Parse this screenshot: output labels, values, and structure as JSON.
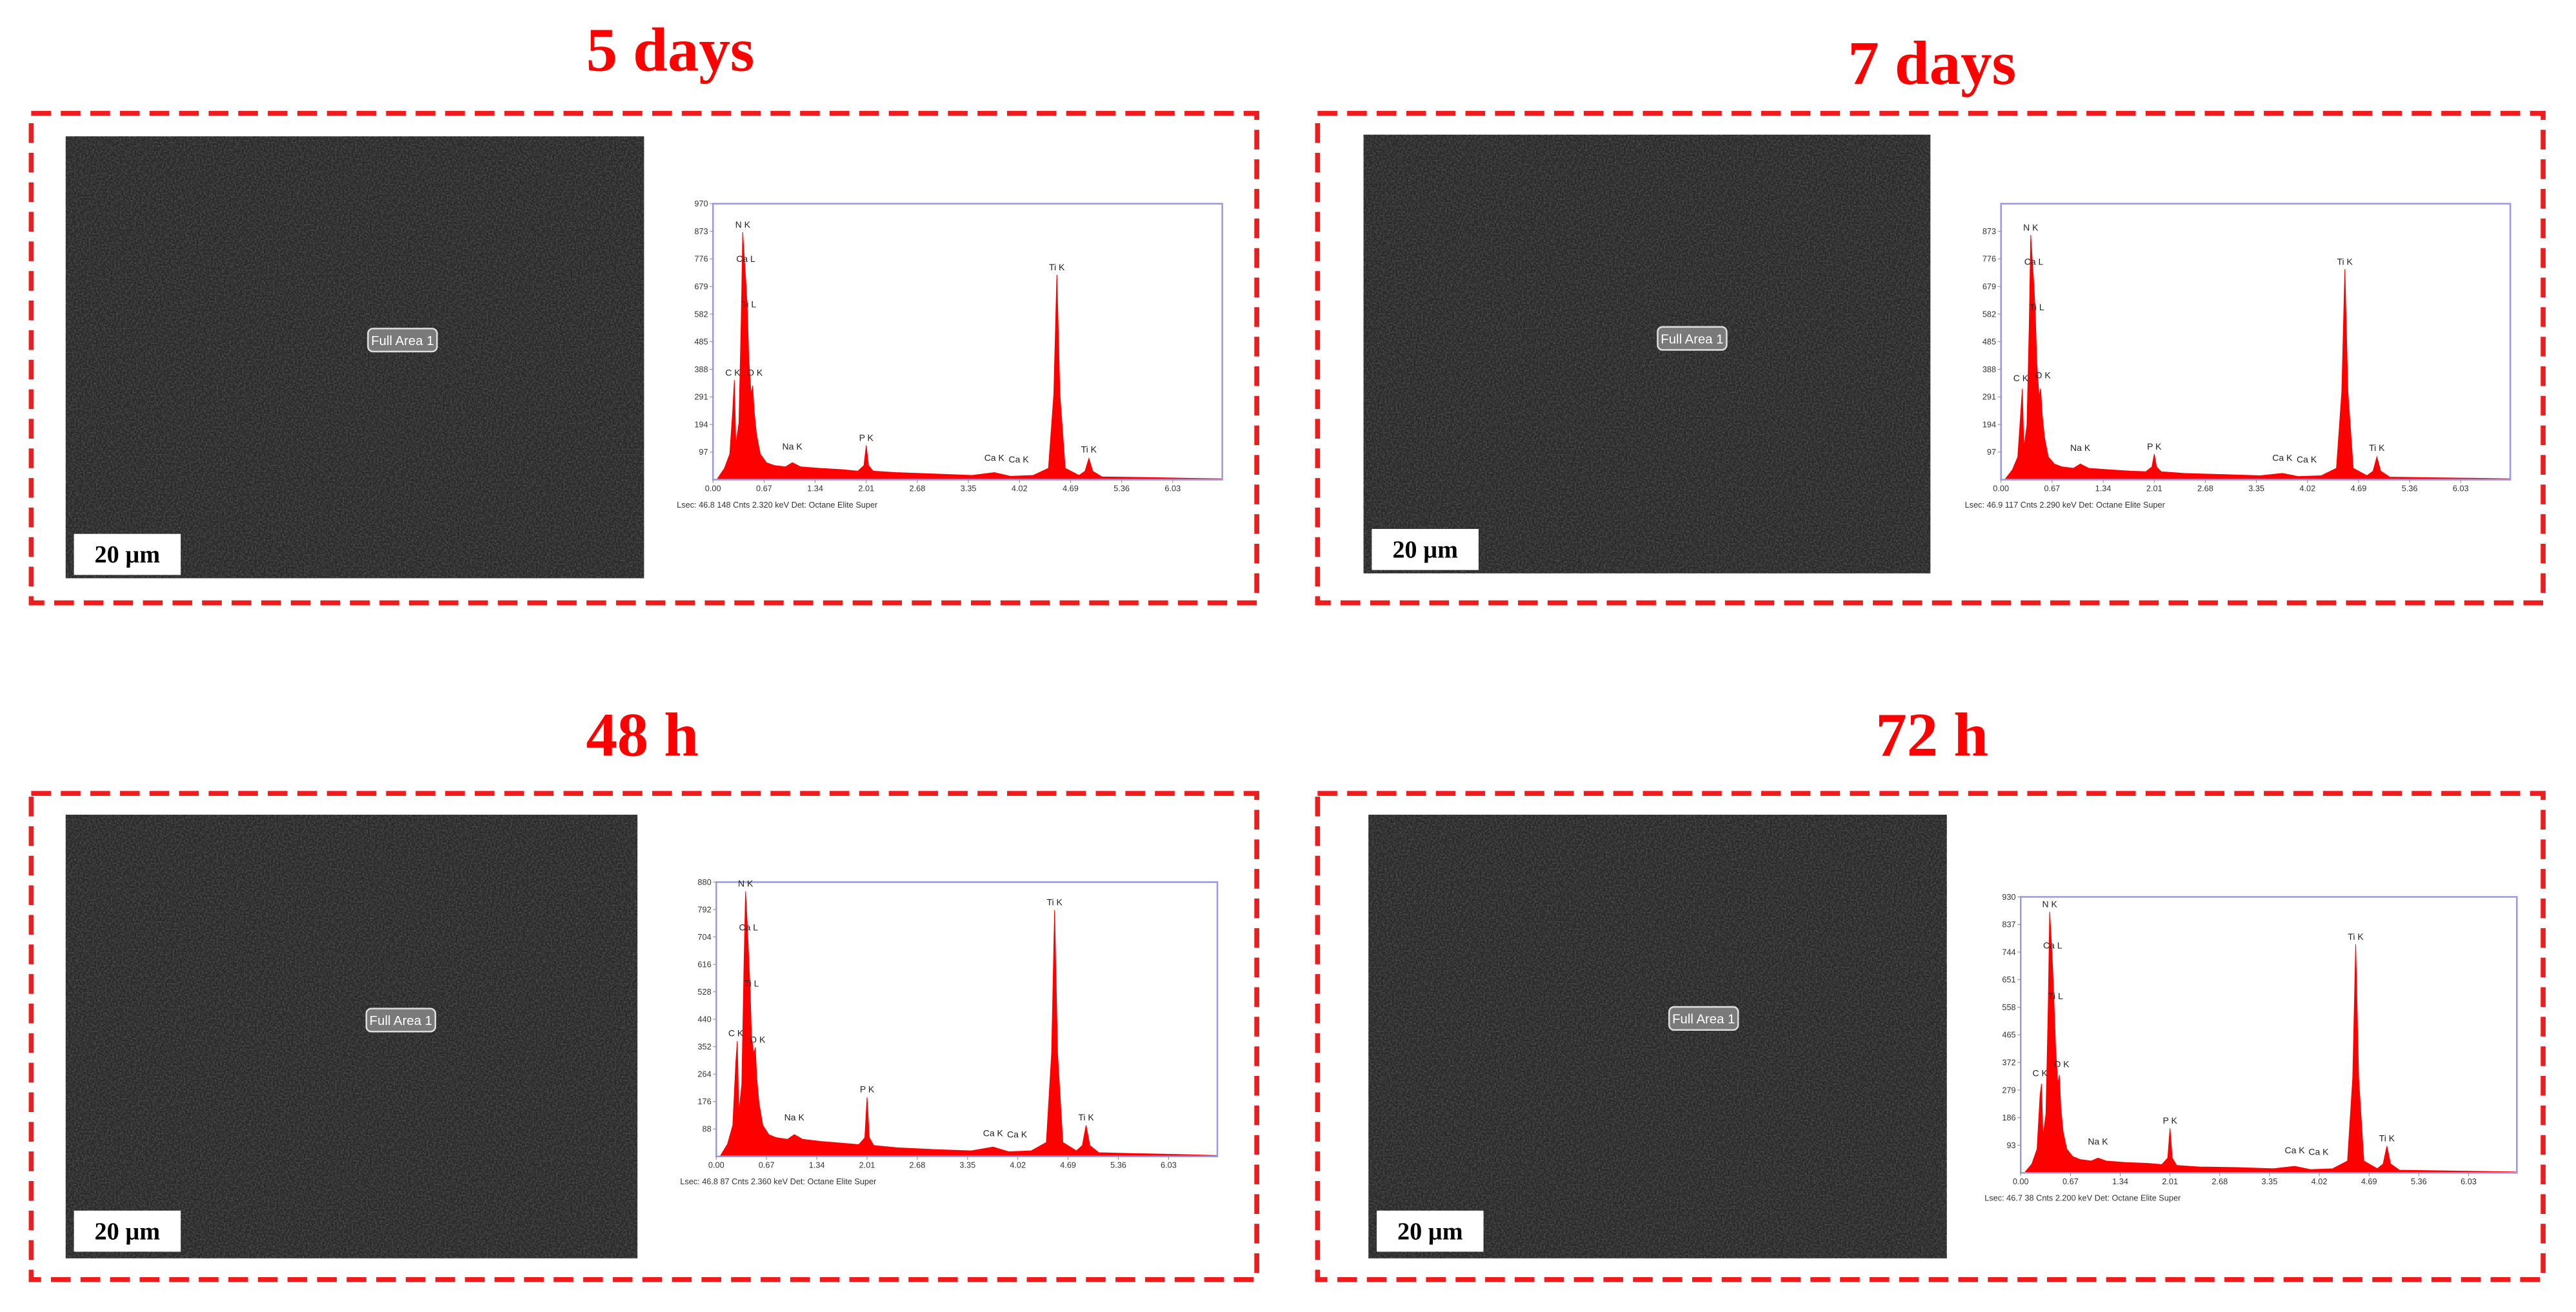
{
  "panels": [
    {
      "title": "5 days",
      "scale_bar": "20 µm",
      "area_label": "Full Area 1"
    },
    {
      "title": "7 days",
      "scale_bar": "20 µm",
      "area_label": "Full Area 1"
    },
    {
      "title": "48 h",
      "scale_bar": "20 µm",
      "area_label": "Full Area 1"
    },
    {
      "title": "72 h",
      "scale_bar": "20 µm",
      "area_label": "Full Area 1"
    }
  ],
  "chart_data": [
    {
      "type": "area",
      "color": "#ff0000",
      "footer": "Lsec: 46.8   148 Cnts   2.320 keV   Det: Octane Elite Super",
      "x": [
        0.05,
        0.15,
        0.22,
        0.26,
        0.28,
        0.3,
        0.34,
        0.37,
        0.39,
        0.41,
        0.43,
        0.45,
        0.47,
        0.5,
        0.52,
        0.54,
        0.57,
        0.62,
        0.7,
        0.8,
        0.95,
        1.04,
        1.15,
        1.4,
        1.7,
        1.9,
        1.98,
        2.01,
        2.04,
        2.1,
        2.4,
        2.9,
        3.4,
        3.69,
        3.9,
        4.2,
        4.4,
        4.47,
        4.51,
        4.55,
        4.62,
        4.8,
        4.88,
        4.93,
        4.98,
        5.1,
        5.6,
        6.2,
        6.68
      ],
      "values": [
        0,
        40,
        90,
        250,
        350,
        120,
        200,
        560,
        870,
        780,
        700,
        600,
        420,
        300,
        330,
        240,
        160,
        90,
        60,
        50,
        45,
        60,
        45,
        40,
        35,
        30,
        50,
        120,
        50,
        30,
        25,
        20,
        15,
        25,
        12,
        15,
        40,
        300,
        720,
        300,
        40,
        15,
        30,
        75,
        30,
        10,
        8,
        5,
        3
      ],
      "xlim": [
        0,
        6.68
      ],
      "ylim": [
        0,
        970
      ],
      "xticks": [
        {
          "value": 0,
          "label": "0.00"
        },
        0.67,
        1.34,
        2.01,
        2.68,
        3.35,
        4.02,
        4.69,
        5.36,
        6.03
      ],
      "yticks": [
        97,
        194,
        291,
        388,
        485,
        582,
        679,
        776,
        873,
        970
      ],
      "annotations": [
        {
          "text": "N K",
          "x": 0.39,
          "y": 880
        },
        {
          "text": "Ca L",
          "x": 0.43,
          "y": 760
        },
        {
          "text": "Ti L",
          "x": 0.47,
          "y": 600
        },
        {
          "text": "C K",
          "x": 0.26,
          "y": 360
        },
        {
          "text": "O K",
          "x": 0.55,
          "y": 360
        },
        {
          "text": "Na K",
          "x": 1.04,
          "y": 100
        },
        {
          "text": "P K",
          "x": 2.01,
          "y": 130
        },
        {
          "text": "Ca K",
          "x": 3.69,
          "y": 60
        },
        {
          "text": "Ca K",
          "x": 4.01,
          "y": 55
        },
        {
          "text": "Ti K",
          "x": 4.51,
          "y": 730
        },
        {
          "text": "Ti K",
          "x": 4.93,
          "y": 90
        }
      ]
    },
    {
      "type": "area",
      "color": "#ff0000",
      "footer": "Lsec: 46.9   117 Cnts   2.290 keV   Det: Octane Elite Super",
      "x": [
        0.05,
        0.15,
        0.22,
        0.26,
        0.28,
        0.3,
        0.34,
        0.37,
        0.39,
        0.41,
        0.43,
        0.45,
        0.47,
        0.5,
        0.52,
        0.54,
        0.57,
        0.62,
        0.7,
        0.8,
        0.95,
        1.04,
        1.15,
        1.4,
        1.7,
        1.9,
        1.98,
        2.01,
        2.04,
        2.1,
        2.4,
        2.9,
        3.4,
        3.69,
        3.9,
        4.2,
        4.4,
        4.47,
        4.51,
        4.55,
        4.62,
        4.8,
        4.88,
        4.93,
        4.98,
        5.1,
        5.6,
        6.2,
        6.68
      ],
      "values": [
        0,
        35,
        80,
        240,
        320,
        110,
        190,
        540,
        860,
        770,
        690,
        580,
        410,
        290,
        320,
        230,
        150,
        80,
        55,
        45,
        40,
        55,
        40,
        35,
        30,
        28,
        45,
        90,
        45,
        28,
        22,
        18,
        14,
        22,
        11,
        14,
        40,
        310,
        740,
        310,
        40,
        14,
        30,
        80,
        30,
        9,
        7,
        5,
        3
      ],
      "xlim": [
        0,
        6.68
      ],
      "ylim": [
        0,
        970
      ],
      "xticks": [
        {
          "value": 0,
          "label": "0.00"
        },
        0.67,
        1.34,
        2.01,
        2.68,
        3.35,
        4.02,
        4.69,
        5.36,
        6.03
      ],
      "yticks": [
        97,
        194,
        291,
        388,
        485,
        582,
        679,
        776,
        873
      ],
      "annotations": [
        {
          "text": "N K",
          "x": 0.39,
          "y": 870
        },
        {
          "text": "Ca L",
          "x": 0.43,
          "y": 750
        },
        {
          "text": "Ti L",
          "x": 0.47,
          "y": 590
        },
        {
          "text": "C K",
          "x": 0.26,
          "y": 340
        },
        {
          "text": "O K",
          "x": 0.55,
          "y": 350
        },
        {
          "text": "Na K",
          "x": 1.04,
          "y": 95
        },
        {
          "text": "P K",
          "x": 2.01,
          "y": 100
        },
        {
          "text": "Ca K",
          "x": 3.69,
          "y": 60
        },
        {
          "text": "Ca K",
          "x": 4.01,
          "y": 55
        },
        {
          "text": "Ti K",
          "x": 4.51,
          "y": 750
        },
        {
          "text": "Ti K",
          "x": 4.93,
          "y": 95
        }
      ]
    },
    {
      "type": "area",
      "color": "#ff0000",
      "footer": "Lsec: 46.8   87 Cnts   2.360 keV   Det: Octane Elite Super",
      "x": [
        0.05,
        0.15,
        0.22,
        0.26,
        0.28,
        0.3,
        0.34,
        0.37,
        0.39,
        0.41,
        0.43,
        0.45,
        0.47,
        0.5,
        0.52,
        0.54,
        0.57,
        0.62,
        0.7,
        0.8,
        0.95,
        1.04,
        1.15,
        1.4,
        1.7,
        1.9,
        1.98,
        2.01,
        2.04,
        2.1,
        2.4,
        2.9,
        3.4,
        3.69,
        3.9,
        4.2,
        4.4,
        4.47,
        4.51,
        4.55,
        4.62,
        4.8,
        4.88,
        4.93,
        4.98,
        5.1,
        5.6,
        6.2,
        6.68
      ],
      "values": [
        0,
        40,
        100,
        300,
        370,
        140,
        230,
        620,
        850,
        760,
        650,
        540,
        380,
        330,
        350,
        250,
        170,
        100,
        70,
        60,
        55,
        70,
        55,
        48,
        42,
        38,
        60,
        190,
        60,
        35,
        28,
        22,
        18,
        30,
        15,
        18,
        45,
        330,
        790,
        330,
        45,
        18,
        35,
        100,
        35,
        12,
        9,
        6,
        3
      ],
      "xlim": [
        0,
        6.68
      ],
      "ylim": [
        0,
        880
      ],
      "xticks": [
        {
          "value": 0,
          "label": "0.00"
        },
        0.67,
        1.34,
        2.01,
        2.68,
        3.35,
        4.02,
        4.69,
        5.36,
        6.03
      ],
      "yticks": [
        88,
        176,
        264,
        352,
        440,
        528,
        616,
        704,
        792,
        880
      ],
      "annotations": [
        {
          "text": "N K",
          "x": 0.39,
          "y": 860
        },
        {
          "text": "Ca L",
          "x": 0.43,
          "y": 720
        },
        {
          "text": "Ti L",
          "x": 0.47,
          "y": 540
        },
        {
          "text": "C K",
          "x": 0.26,
          "y": 380
        },
        {
          "text": "O K",
          "x": 0.55,
          "y": 360
        },
        {
          "text": "Na K",
          "x": 1.04,
          "y": 110
        },
        {
          "text": "P K",
          "x": 2.01,
          "y": 200
        },
        {
          "text": "Ca K",
          "x": 3.69,
          "y": 60
        },
        {
          "text": "Ca K",
          "x": 4.01,
          "y": 55
        },
        {
          "text": "Ti K",
          "x": 4.51,
          "y": 800
        },
        {
          "text": "Ti K",
          "x": 4.93,
          "y": 110
        }
      ]
    },
    {
      "type": "area",
      "color": "#ff0000",
      "footer": "Lsec: 46.7   38 Cnts   2.200 keV   Det: Octane Elite Super",
      "x": [
        0.05,
        0.15,
        0.22,
        0.26,
        0.28,
        0.3,
        0.34,
        0.37,
        0.39,
        0.41,
        0.43,
        0.45,
        0.47,
        0.5,
        0.52,
        0.54,
        0.57,
        0.62,
        0.7,
        0.8,
        0.95,
        1.04,
        1.15,
        1.4,
        1.7,
        1.9,
        1.98,
        2.01,
        2.04,
        2.1,
        2.4,
        2.9,
        3.4,
        3.69,
        3.9,
        4.2,
        4.4,
        4.47,
        4.51,
        4.55,
        4.62,
        4.8,
        4.88,
        4.93,
        4.98,
        5.1,
        5.6,
        6.2,
        6.68
      ],
      "values": [
        0,
        30,
        80,
        260,
        300,
        120,
        200,
        560,
        880,
        790,
        690,
        560,
        420,
        300,
        330,
        220,
        140,
        80,
        55,
        45,
        40,
        50,
        40,
        35,
        32,
        28,
        50,
        150,
        50,
        25,
        20,
        18,
        14,
        22,
        11,
        14,
        40,
        320,
        770,
        320,
        40,
        14,
        30,
        90,
        30,
        9,
        7,
        5,
        3
      ],
      "xlim": [
        0,
        6.68
      ],
      "ylim": [
        0,
        930
      ],
      "xticks": [
        {
          "value": 0,
          "label": "0.00"
        },
        0.67,
        1.34,
        2.01,
        2.68,
        3.35,
        4.02,
        4.69,
        5.36,
        6.03
      ],
      "yticks": [
        93,
        186,
        279,
        372,
        465,
        558,
        651,
        744,
        837,
        930
      ],
      "annotations": [
        {
          "text": "N K",
          "x": 0.39,
          "y": 890
        },
        {
          "text": "Ca L",
          "x": 0.43,
          "y": 750
        },
        {
          "text": "Ti L",
          "x": 0.47,
          "y": 580
        },
        {
          "text": "C K",
          "x": 0.26,
          "y": 320
        },
        {
          "text": "O K",
          "x": 0.55,
          "y": 350
        },
        {
          "text": "Na K",
          "x": 1.04,
          "y": 90
        },
        {
          "text": "P K",
          "x": 2.01,
          "y": 160
        },
        {
          "text": "Ca K",
          "x": 3.69,
          "y": 60
        },
        {
          "text": "Ca K",
          "x": 4.01,
          "y": 55
        },
        {
          "text": "Ti K",
          "x": 4.51,
          "y": 780
        },
        {
          "text": "Ti K",
          "x": 4.93,
          "y": 100
        }
      ]
    }
  ]
}
